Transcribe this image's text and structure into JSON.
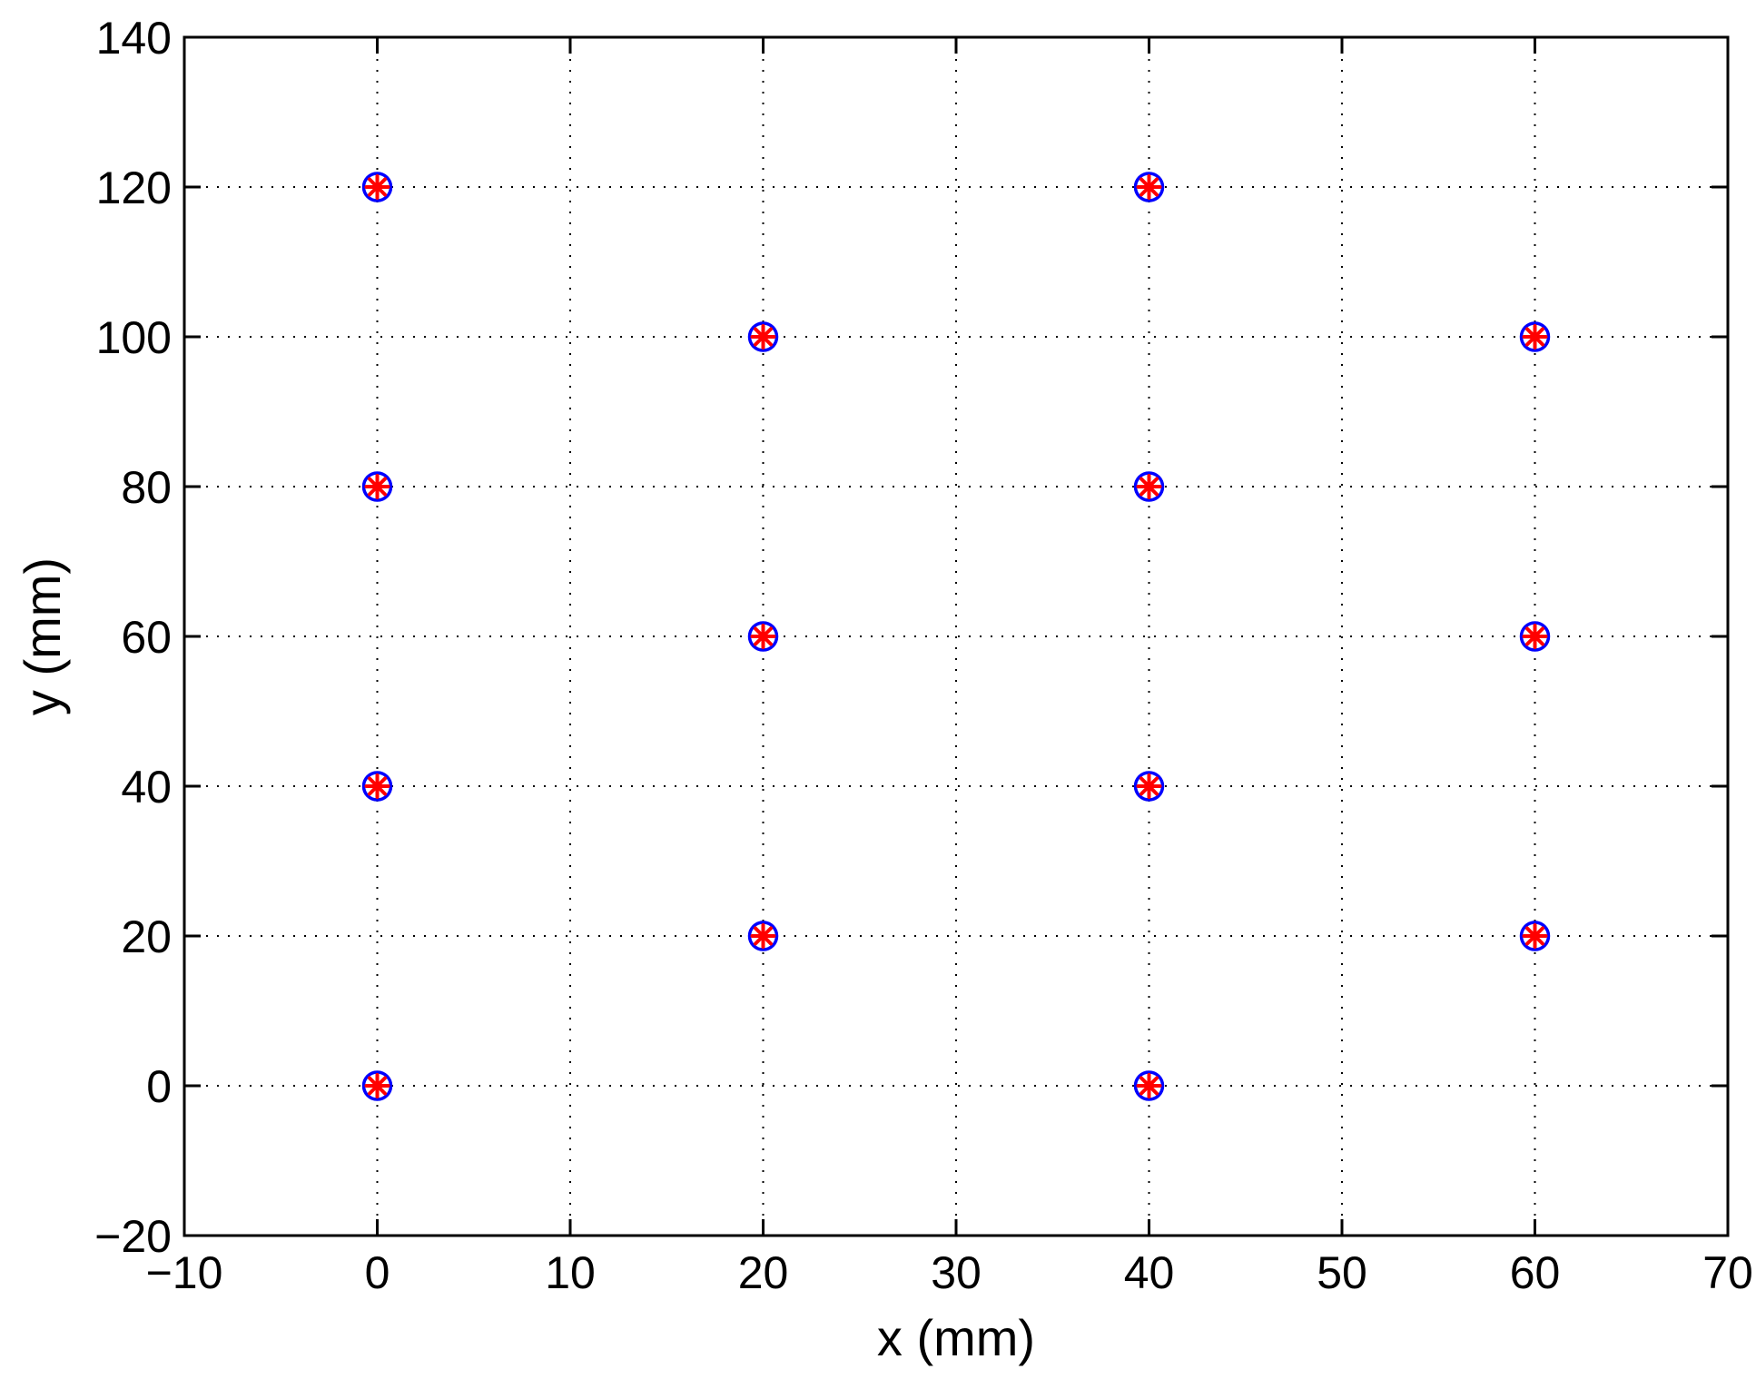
{
  "chart_data": {
    "type": "scatter",
    "title": "",
    "xlabel": "x (mm)",
    "ylabel": "y (mm)",
    "xlim": [
      -10,
      70
    ],
    "ylim": [
      -20,
      140
    ],
    "xticks": [
      -10,
      0,
      10,
      20,
      30,
      40,
      50,
      60,
      70
    ],
    "yticks": [
      -20,
      0,
      20,
      40,
      60,
      80,
      100,
      120,
      140
    ],
    "xtick_labels": [
      "−10",
      "0",
      "10",
      "20",
      "30",
      "40",
      "50",
      "60",
      "70"
    ],
    "ytick_labels": [
      "−20",
      "0",
      "20",
      "40",
      "60",
      "80",
      "100",
      "120",
      "140"
    ],
    "grid": true,
    "legend": "none",
    "series": [
      {
        "marker": "circle",
        "color": "#0000ff",
        "points": [
          [
            0,
            0
          ],
          [
            0,
            40
          ],
          [
            0,
            80
          ],
          [
            0,
            120
          ],
          [
            20,
            20
          ],
          [
            20,
            60
          ],
          [
            20,
            100
          ],
          [
            40,
            0
          ],
          [
            40,
            40
          ],
          [
            40,
            80
          ],
          [
            40,
            120
          ],
          [
            60,
            20
          ],
          [
            60,
            60
          ],
          [
            60,
            100
          ]
        ]
      },
      {
        "marker": "asterisk",
        "color": "#ff0000",
        "points": [
          [
            0,
            0
          ],
          [
            0,
            40
          ],
          [
            0,
            80
          ],
          [
            0,
            120
          ],
          [
            20,
            20
          ],
          [
            20,
            60
          ],
          [
            20,
            100
          ],
          [
            40,
            0
          ],
          [
            40,
            40
          ],
          [
            40,
            80
          ],
          [
            40,
            120
          ],
          [
            60,
            20
          ],
          [
            60,
            60
          ],
          [
            60,
            100
          ]
        ]
      }
    ]
  }
}
